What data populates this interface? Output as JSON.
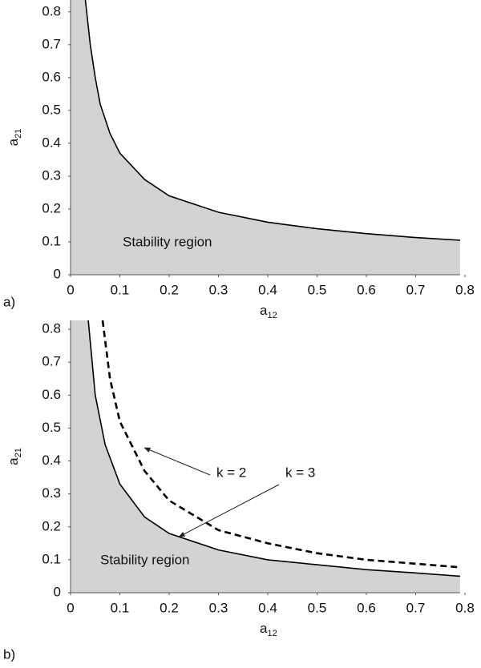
{
  "chart_data": [
    {
      "type": "line",
      "label": "a)",
      "xlabel": {
        "base": "a",
        "sub": "12"
      },
      "ylabel": {
        "base": "a",
        "sub": "21"
      },
      "region_label": "Stability region",
      "fill_color": "#d3d3d3",
      "xlim": [
        0,
        0.8
      ],
      "ylim": [
        0,
        0.836
      ],
      "xticks": [
        0,
        0.1,
        0.2,
        0.3,
        0.4,
        0.5,
        0.6,
        0.7,
        0.8
      ],
      "yticks": [
        0,
        0.1,
        0.2,
        0.3,
        0.4,
        0.5,
        0.6,
        0.7,
        0.8
      ],
      "series": [
        {
          "color": "#000000",
          "style": "solid",
          "x": [
            0.03,
            0.04,
            0.05,
            0.06,
            0.08,
            0.1,
            0.15,
            0.2,
            0.3,
            0.4,
            0.5,
            0.6,
            0.7,
            0.79
          ],
          "values": [
            0.836,
            0.7,
            0.6,
            0.52,
            0.43,
            0.37,
            0.29,
            0.24,
            0.19,
            0.16,
            0.14,
            0.125,
            0.113,
            0.105
          ]
        }
      ]
    },
    {
      "type": "line",
      "label": "b)",
      "xlabel": {
        "base": "a",
        "sub": "12"
      },
      "ylabel": {
        "base": "a",
        "sub": "21"
      },
      "region_label": "Stability region",
      "fill_color": "#d3d3d3",
      "xlim": [
        0,
        0.8
      ],
      "ylim": [
        0,
        0.827
      ],
      "xticks": [
        0,
        0.1,
        0.2,
        0.3,
        0.4,
        0.5,
        0.6,
        0.7,
        0.8
      ],
      "yticks": [
        0,
        0.1,
        0.2,
        0.3,
        0.4,
        0.5,
        0.6,
        0.7,
        0.8
      ],
      "series": [
        {
          "name": "k = 3",
          "color": "#000000",
          "style": "solid",
          "x": [
            0.036,
            0.05,
            0.07,
            0.1,
            0.15,
            0.2,
            0.3,
            0.4,
            0.5,
            0.6,
            0.7,
            0.79
          ],
          "values": [
            0.827,
            0.6,
            0.45,
            0.33,
            0.23,
            0.18,
            0.13,
            0.1,
            0.085,
            0.07,
            0.06,
            0.05
          ]
        },
        {
          "name": "k = 2",
          "color": "#000000",
          "style": "dashed",
          "x": [
            0.065,
            0.08,
            0.1,
            0.15,
            0.2,
            0.3,
            0.4,
            0.5,
            0.6,
            0.7,
            0.79
          ],
          "values": [
            0.827,
            0.65,
            0.52,
            0.37,
            0.28,
            0.19,
            0.15,
            0.12,
            0.1,
            0.088,
            0.077
          ]
        }
      ],
      "annotations": [
        {
          "text": "k = 2",
          "xy": [
            0.15,
            0.44
          ]
        },
        {
          "text": "k = 3",
          "xy": [
            0.22,
            0.17
          ]
        }
      ]
    }
  ]
}
